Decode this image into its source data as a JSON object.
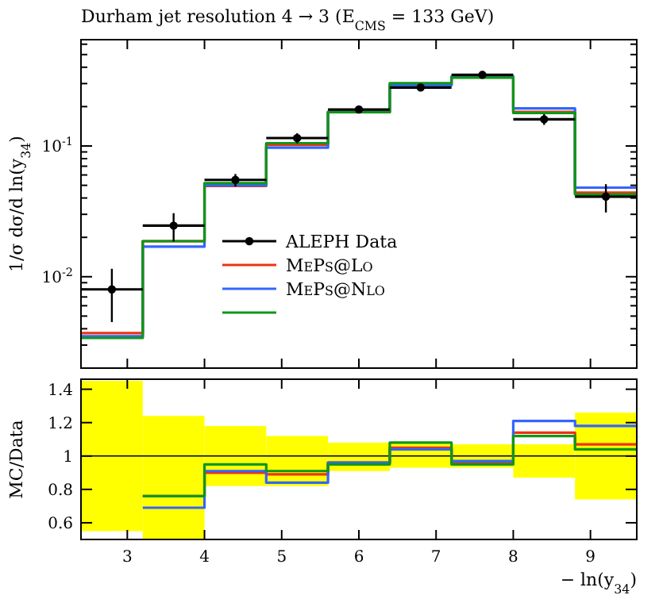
{
  "chart_data": [
    {
      "type": "histogram",
      "title": "Durham jet resolution 4 → 3 (E$_{CMS}$ = 133 GeV)",
      "ylabel": "1/σ dσ/d ln(y$_{34}$)",
      "bins": [
        2.4,
        3.2,
        4.0,
        4.8,
        5.6,
        6.4,
        7.2,
        8.0,
        8.8,
        9.6
      ],
      "log": "y",
      "xlim": [
        2.4,
        9.6
      ],
      "ylim": [
        0.002,
        0.65
      ],
      "xticks": [
        {
          "value": 3,
          "label": null
        },
        {
          "value": 4,
          "label": null
        },
        {
          "value": 5,
          "label": null
        },
        {
          "value": 6,
          "label": null
        },
        {
          "value": 7,
          "label": null
        },
        {
          "value": 8,
          "label": null
        },
        {
          "value": 9,
          "label": null
        }
      ],
      "yticks": [
        {
          "value": 0.002,
          "label": null
        },
        {
          "value": 0.003,
          "label": null
        },
        {
          "value": 0.004,
          "label": null
        },
        {
          "value": 0.005,
          "label": null
        },
        {
          "value": 0.006,
          "label": null
        },
        {
          "value": 0.007,
          "label": null
        },
        {
          "value": 0.008,
          "label": null
        },
        {
          "value": 0.009,
          "label": null
        },
        {
          "value": 0.01,
          "label": "10$^{-2}$"
        },
        {
          "value": 0.02,
          "label": null
        },
        {
          "value": 0.03,
          "label": null
        },
        {
          "value": 0.04,
          "label": null
        },
        {
          "value": 0.05,
          "label": null
        },
        {
          "value": 0.06,
          "label": null
        },
        {
          "value": 0.07,
          "label": null
        },
        {
          "value": 0.08,
          "label": null
        },
        {
          "value": 0.09,
          "label": null
        },
        {
          "value": 0.1,
          "label": "10$^{-1}$"
        },
        {
          "value": 0.2,
          "label": null
        },
        {
          "value": 0.3,
          "label": null
        },
        {
          "value": 0.4,
          "label": null
        },
        {
          "value": 0.5,
          "label": null
        },
        {
          "value": 0.6,
          "label": null
        }
      ],
      "tick_labels": "y",
      "legend": "bottom",
      "grid": false,
      "series": [
        {
          "name": "MePs@Lo",
          "color": "#ee3311",
          "values": [
            0.0037,
            0.0187,
            0.0495,
            0.102,
            0.182,
            0.294,
            0.336,
            0.182,
            0.0439
          ]
        },
        {
          "name": "MePs@Nlo",
          "color": "#3366ff",
          "values": [
            0.0035,
            0.017,
            0.05,
            0.097,
            0.182,
            0.291,
            0.34,
            0.194,
            0.048
          ]
        },
        {
          "color": "#109618",
          "values": [
            0.0034,
            0.0187,
            0.052,
            0.105,
            0.181,
            0.302,
            0.333,
            0.179,
            0.0426
          ]
        },
        {
          "name": "ALEPH Data",
          "type": "scatter",
          "marker": "circle",
          "color": "#000000",
          "x": [
            2.8,
            3.6,
            4.4,
            5.2,
            6.0,
            6.8,
            7.6,
            8.4,
            9.2
          ],
          "values": [
            0.008,
            0.0246,
            0.055,
            0.115,
            0.19,
            0.28,
            0.35,
            0.16,
            0.041
          ],
          "errors": [
            0.0035,
            0.006,
            0.006,
            0.01,
            0.01,
            0.01,
            0.012,
            0.015,
            0.01
          ],
          "xerrors": [
            0.4,
            0.4,
            0.4,
            0.4,
            0.4,
            0.4,
            0.4,
            0.4,
            0.4
          ]
        }
      ]
    },
    {
      "type": "histogram",
      "ylabel": "MC/Data",
      "xlabel": "− ln(y$_{34}$)",
      "bins": [
        3.2,
        4.0,
        4.8,
        5.6,
        6.4,
        7.2,
        8.0,
        8.8,
        9.6
      ],
      "xlim": [
        2.4,
        9.6
      ],
      "ylim": [
        0.5,
        1.46
      ],
      "xticks": [
        3,
        4,
        5,
        6,
        7,
        8,
        9
      ],
      "yticks": [
        {
          "value": 0.6,
          "label": "0.6"
        },
        {
          "value": 0.8,
          "label": "0.8"
        },
        1,
        {
          "value": 1.2,
          "label": "1.2"
        },
        {
          "value": 1.4,
          "label": "1.4"
        }
      ],
      "grid": false,
      "ref_lines": [
        {
          "axis": "y",
          "value": 1,
          "color": "#000000"
        }
      ],
      "series": [
        {
          "type": "bar",
          "color": "#ffff00",
          "x": [
            2.8,
            3.6,
            4.4,
            5.2,
            6.0,
            6.8,
            7.6,
            8.4,
            9.2
          ],
          "base": [
            0.55,
            0.5,
            0.82,
            0.82,
            0.91,
            0.93,
            0.93,
            0.87,
            0.74
          ],
          "values": [
            0.9,
            0.74,
            0.36,
            0.3,
            0.17,
            0.15,
            0.14,
            0.2,
            0.52
          ]
        },
        {
          "color": "#ee3311",
          "values": [
            0.76,
            0.9,
            0.89,
            0.96,
            1.05,
            0.96,
            1.14,
            1.07
          ]
        },
        {
          "color": "#3366ff",
          "values": [
            0.69,
            0.91,
            0.84,
            0.96,
            1.04,
            0.97,
            1.21,
            1.18
          ]
        },
        {
          "color": "#109618",
          "values": [
            0.76,
            0.95,
            0.91,
            0.95,
            1.08,
            0.95,
            1.12,
            1.04
          ]
        }
      ]
    }
  ]
}
